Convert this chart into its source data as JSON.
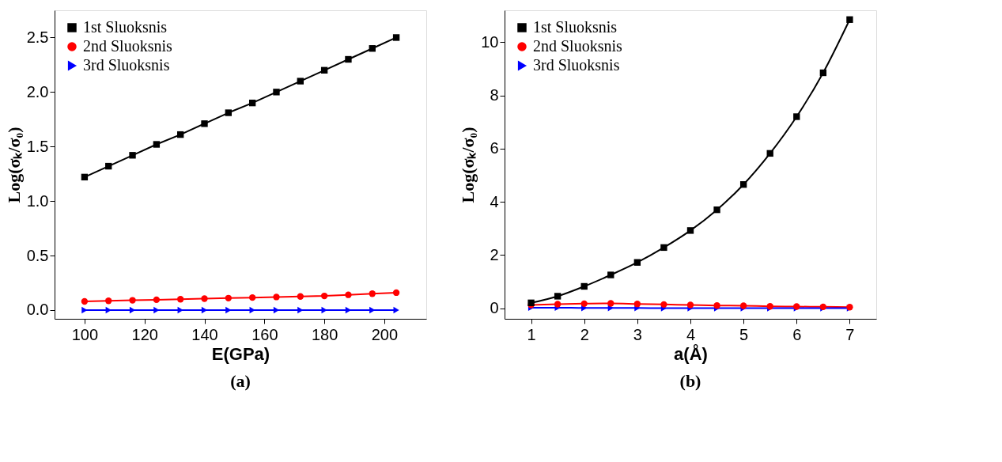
{
  "chart_data": [
    {
      "type": "line",
      "title": "(a)",
      "xlabel": "E(GPa)",
      "ylabel": "Log(σₖ/σ₀)",
      "x": [
        100,
        108,
        116,
        124,
        132,
        140,
        148,
        156,
        164,
        172,
        180,
        188,
        196,
        204
      ],
      "series": [
        {
          "name": "1st Sluoksnis",
          "color": "#000000",
          "marker": "square",
          "values": [
            1.22,
            1.32,
            1.42,
            1.52,
            1.61,
            1.71,
            1.81,
            1.9,
            2.0,
            2.1,
            2.2,
            2.3,
            2.4,
            2.5
          ]
        },
        {
          "name": "2nd Sluoksnis",
          "color": "#ff0000",
          "marker": "circle",
          "values": [
            0.08,
            0.085,
            0.09,
            0.095,
            0.1,
            0.105,
            0.11,
            0.115,
            0.12,
            0.125,
            0.13,
            0.14,
            0.15,
            0.16
          ]
        },
        {
          "name": "3rd Sluoksnis",
          "color": "#0000ff",
          "marker": "triangle",
          "values": [
            0,
            0,
            0,
            0,
            0,
            0,
            0,
            0,
            0,
            0,
            0,
            0,
            0,
            0
          ]
        }
      ],
      "xlim": [
        90,
        214
      ],
      "xticks": [
        100,
        120,
        140,
        160,
        180,
        200
      ],
      "ylim": [
        -0.08,
        2.75
      ],
      "yticks": [
        {
          "value": 0,
          "label": "0.0"
        },
        0.5,
        {
          "value": 1,
          "label": "1.0"
        },
        1.5,
        {
          "value": 2,
          "label": "2.0"
        },
        2.5
      ],
      "grid": false,
      "legend": "top left"
    },
    {
      "type": "line",
      "title": "(b)",
      "xlabel": "a(Å)",
      "ylabel": "Log(σₖ/σ₀)",
      "x": [
        1,
        1.5,
        2,
        2.5,
        3,
        3.5,
        4,
        4.5,
        5,
        5.5,
        6,
        6.5,
        7
      ],
      "series": [
        {
          "name": "1st Sluoksnis",
          "color": "#000000",
          "marker": "square",
          "values": [
            0.2,
            0.45,
            0.82,
            1.25,
            1.72,
            2.28,
            2.92,
            3.7,
            4.65,
            5.82,
            7.2,
            8.85,
            10.85
          ]
        },
        {
          "name": "2nd Sluoksnis",
          "color": "#ff0000",
          "marker": "circle",
          "values": [
            0.12,
            0.15,
            0.17,
            0.18,
            0.16,
            0.14,
            0.12,
            0.1,
            0.09,
            0.07,
            0.06,
            0.05,
            0.04
          ]
        },
        {
          "name": "3rd Sluoksnis",
          "color": "#0000ff",
          "marker": "triangle",
          "values": [
            0.02,
            0.02,
            0.01,
            0.01,
            0.01,
            0,
            0,
            0,
            0,
            0,
            0,
            0,
            0
          ]
        }
      ],
      "xlim": [
        0.5,
        7.5
      ],
      "xticks": [
        1,
        2,
        3,
        4,
        5,
        6,
        7
      ],
      "ylim": [
        -0.4,
        11.2
      ],
      "yticks": [
        0,
        2,
        4,
        6,
        8,
        10
      ],
      "grid": false,
      "legend": "top left"
    }
  ]
}
